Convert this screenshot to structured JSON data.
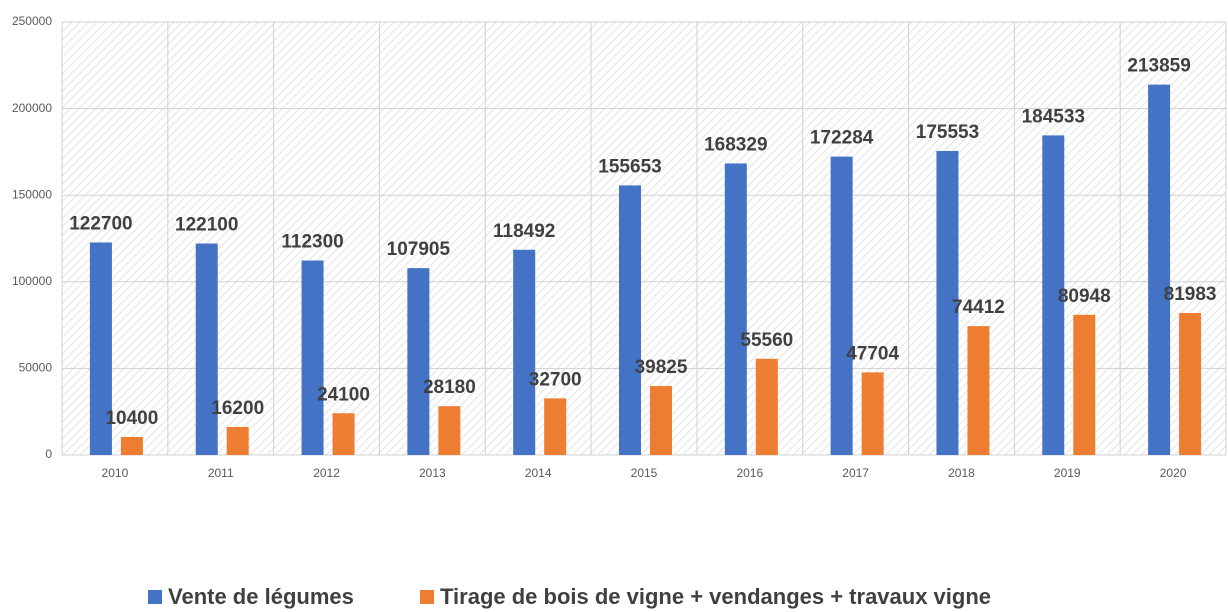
{
  "chart_data": {
    "type": "bar",
    "categories": [
      "2010",
      "2011",
      "2012",
      "2013",
      "2014",
      "2015",
      "2016",
      "2017",
      "2018",
      "2019",
      "2020"
    ],
    "series": [
      {
        "name": "Vente de légumes",
        "color": "#4472c4",
        "values": [
          122700,
          122100,
          112300,
          107905,
          118492,
          155653,
          168329,
          172284,
          175553,
          184533,
          213859
        ]
      },
      {
        "name": "Tirage de bois de vigne + vendanges + travaux vigne",
        "color": "#ed7d31",
        "values": [
          10400,
          16200,
          24100,
          28180,
          32700,
          39825,
          55560,
          47704,
          74412,
          80948,
          81983
        ]
      }
    ],
    "ylim": [
      0,
      250000
    ],
    "yticks": [
      0,
      50000,
      100000,
      150000,
      200000,
      250000
    ],
    "grid": true,
    "legend": "bottom"
  }
}
